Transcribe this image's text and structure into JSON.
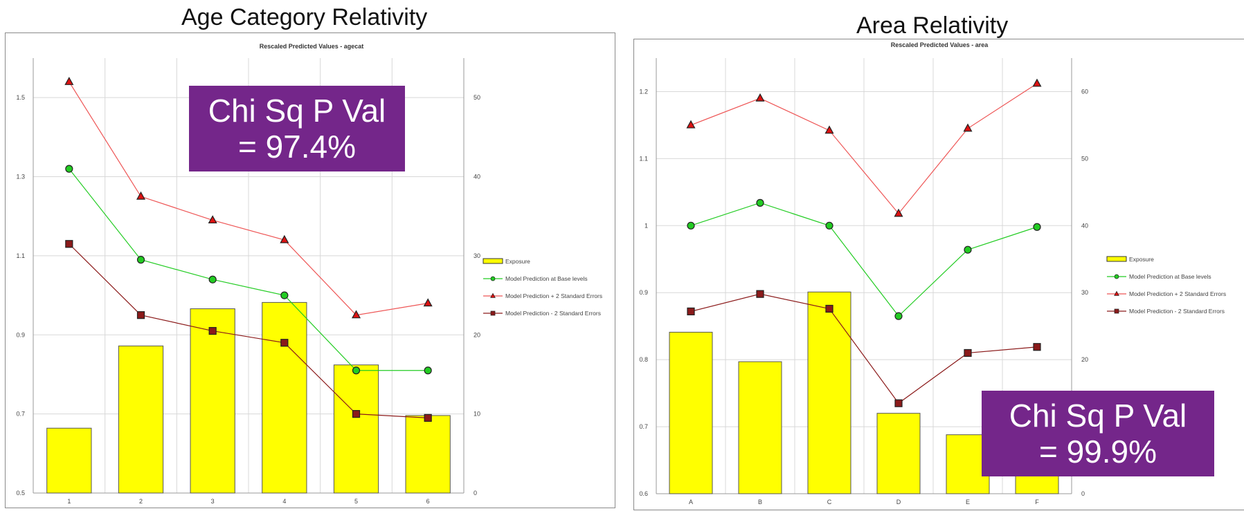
{
  "charts": [
    {
      "heading": "Age Category Relativity",
      "stat_label": "Chi Sq P Val",
      "stat_value": "= 97.4%"
    },
    {
      "heading": "Area Relativity",
      "stat_label": "Chi Sq P Val",
      "stat_value": "= 99.9%"
    }
  ],
  "colors": {
    "bar": "#ffff00",
    "base": "#22cc22",
    "upper": "#ee5555",
    "lower": "#8b1a1a",
    "badge": "#74268a"
  },
  "chart_data": [
    {
      "type": "bar",
      "title": "Rescaled Predicted Values - agecat",
      "categories": [
        "1",
        "2",
        "3",
        "4",
        "5",
        "6"
      ],
      "ylim": [
        0.5,
        1.6
      ],
      "yticks": [
        "0.5",
        "0.7",
        "0.9",
        "1.1",
        "1.3",
        "1.5"
      ],
      "y2lim": [
        0,
        55
      ],
      "y2ticks": [
        "0",
        "10",
        "20",
        "30",
        "40",
        "50"
      ],
      "grid": true,
      "legend_position": "right",
      "series": [
        {
          "name": "Exposure",
          "kind": "bar",
          "axis": "right",
          "values": [
            8.2,
            18.6,
            23.3,
            24.1,
            16.2,
            9.8
          ]
        },
        {
          "name": "Model Prediction at Base levels",
          "kind": "line",
          "marker": "circle",
          "axis": "left",
          "values": [
            1.32,
            1.09,
            1.04,
            1.0,
            0.81,
            0.81
          ]
        },
        {
          "name": "Model Prediction + 2 Standard Errors",
          "kind": "line",
          "marker": "triangle",
          "axis": "left",
          "values": [
            1.54,
            1.25,
            1.19,
            1.14,
            0.95,
            0.98
          ]
        },
        {
          "name": "Model Prediction - 2 Standard Errors",
          "kind": "line",
          "marker": "square",
          "axis": "left",
          "values": [
            1.13,
            0.95,
            0.91,
            0.88,
            0.7,
            0.69
          ]
        }
      ]
    },
    {
      "type": "bar",
      "title": "Rescaled Predicted Values - area",
      "categories": [
        "A",
        "B",
        "C",
        "D",
        "E",
        "F"
      ],
      "ylim": [
        0.6,
        1.25
      ],
      "yticks": [
        "0.6",
        "0.7",
        "0.8",
        "0.9",
        "1",
        "1.1",
        "1.2"
      ],
      "y2lim": [
        0,
        65
      ],
      "y2ticks": [
        "0",
        "10",
        "20",
        "30",
        "40",
        "50",
        "60"
      ],
      "grid": true,
      "legend_position": "right",
      "series": [
        {
          "name": "Exposure",
          "kind": "bar",
          "axis": "right",
          "values": [
            24.1,
            19.7,
            30.1,
            12.0,
            8.8,
            6.4
          ]
        },
        {
          "name": "Model Prediction at Base levels",
          "kind": "line",
          "marker": "circle",
          "axis": "left",
          "values": [
            1.0,
            1.034,
            1.0,
            0.865,
            0.964,
            0.998
          ]
        },
        {
          "name": "Model Prediction + 2 Standard Errors",
          "kind": "line",
          "marker": "triangle",
          "axis": "left",
          "values": [
            1.15,
            1.19,
            1.142,
            1.018,
            1.145,
            1.212
          ]
        },
        {
          "name": "Model Prediction - 2 Standard Errors",
          "kind": "line",
          "marker": "square",
          "axis": "left",
          "values": [
            0.872,
            0.898,
            0.876,
            0.735,
            0.81,
            0.819
          ]
        }
      ]
    }
  ]
}
